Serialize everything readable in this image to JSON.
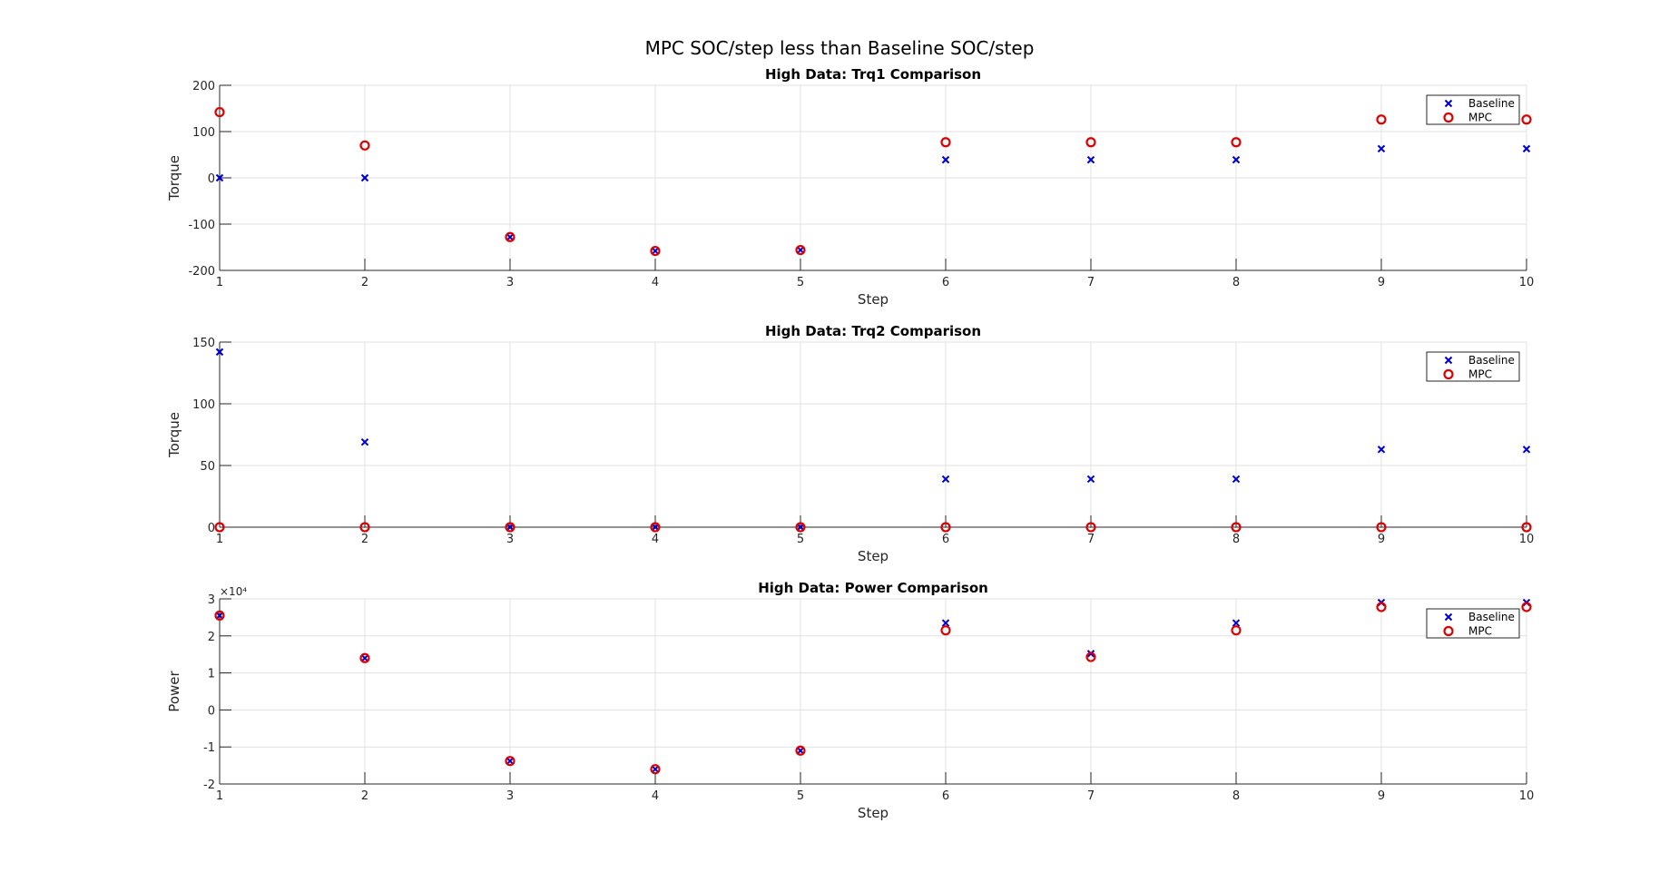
{
  "figure": {
    "title": "MPC SOC/step less than Baseline SOC/step"
  },
  "colors": {
    "baseline": "#0000cc",
    "mpc": "#dd0000",
    "grid": "#e0e0e0",
    "axis": "#262626"
  },
  "chart_data": [
    {
      "type": "scatter",
      "title": "High Data: Trq1 Comparison",
      "xlabel": "Step",
      "ylabel": "Torque",
      "xlim": [
        1,
        10
      ],
      "ylim": [
        -200,
        200
      ],
      "xticks": [
        1,
        2,
        3,
        4,
        5,
        6,
        7,
        8,
        9,
        10
      ],
      "yticks": [
        -200,
        -100,
        0,
        100,
        200
      ],
      "ytick_labels": [
        "-200",
        "-100",
        "0",
        "100",
        "200"
      ],
      "exponent_label": "",
      "grid": true,
      "legend": "top-right",
      "x": [
        1,
        2,
        3,
        4,
        5,
        6,
        7,
        8,
        9,
        10
      ],
      "series": [
        {
          "name": "Baseline",
          "marker": "x",
          "values": [
            0,
            0,
            -128,
            -158,
            -156,
            39,
            39,
            39,
            63,
            63
          ]
        },
        {
          "name": "MPC",
          "marker": "o",
          "values": [
            142,
            70,
            -128,
            -158,
            -156,
            77,
            77,
            77,
            126,
            126
          ]
        }
      ]
    },
    {
      "type": "scatter",
      "title": "High Data: Trq2 Comparison",
      "xlabel": "Step",
      "ylabel": "Torque",
      "xlim": [
        1,
        10
      ],
      "ylim": [
        0,
        150
      ],
      "xticks": [
        1,
        2,
        3,
        4,
        5,
        6,
        7,
        8,
        9,
        10
      ],
      "yticks": [
        0,
        50,
        100,
        150
      ],
      "ytick_labels": [
        "0",
        "50",
        "100",
        "150"
      ],
      "exponent_label": "",
      "grid": true,
      "legend": "top-right",
      "x": [
        1,
        2,
        3,
        4,
        5,
        6,
        7,
        8,
        9,
        10
      ],
      "series": [
        {
          "name": "Baseline",
          "marker": "x",
          "values": [
            142,
            69,
            0,
            0,
            0,
            39,
            39,
            39,
            63,
            63
          ]
        },
        {
          "name": "MPC",
          "marker": "o",
          "values": [
            0,
            0,
            0,
            0,
            0,
            0,
            0,
            0,
            0,
            0
          ]
        }
      ]
    },
    {
      "type": "scatter",
      "title": "High Data: Power Comparison",
      "xlabel": "Step",
      "ylabel": "Power",
      "xlim": [
        1,
        10
      ],
      "ylim": [
        -20000,
        30000
      ],
      "xticks": [
        1,
        2,
        3,
        4,
        5,
        6,
        7,
        8,
        9,
        10
      ],
      "yticks": [
        -20000,
        -10000,
        0,
        10000,
        20000,
        30000
      ],
      "ytick_labels": [
        "-2",
        "-1",
        "0",
        "1",
        "2",
        "3"
      ],
      "exponent_label": "×10⁴",
      "grid": true,
      "legend": "top-right",
      "x": [
        1,
        2,
        3,
        4,
        5,
        6,
        7,
        8,
        9,
        10
      ],
      "series": [
        {
          "name": "Baseline",
          "marker": "x",
          "values": [
            25500,
            14000,
            -13800,
            -16000,
            -11000,
            23500,
            15200,
            23500,
            29000,
            29000
          ]
        },
        {
          "name": "MPC",
          "marker": "o",
          "values": [
            25500,
            14000,
            -13800,
            -16000,
            -11000,
            21500,
            14300,
            21500,
            27800,
            27800
          ]
        }
      ]
    }
  ]
}
